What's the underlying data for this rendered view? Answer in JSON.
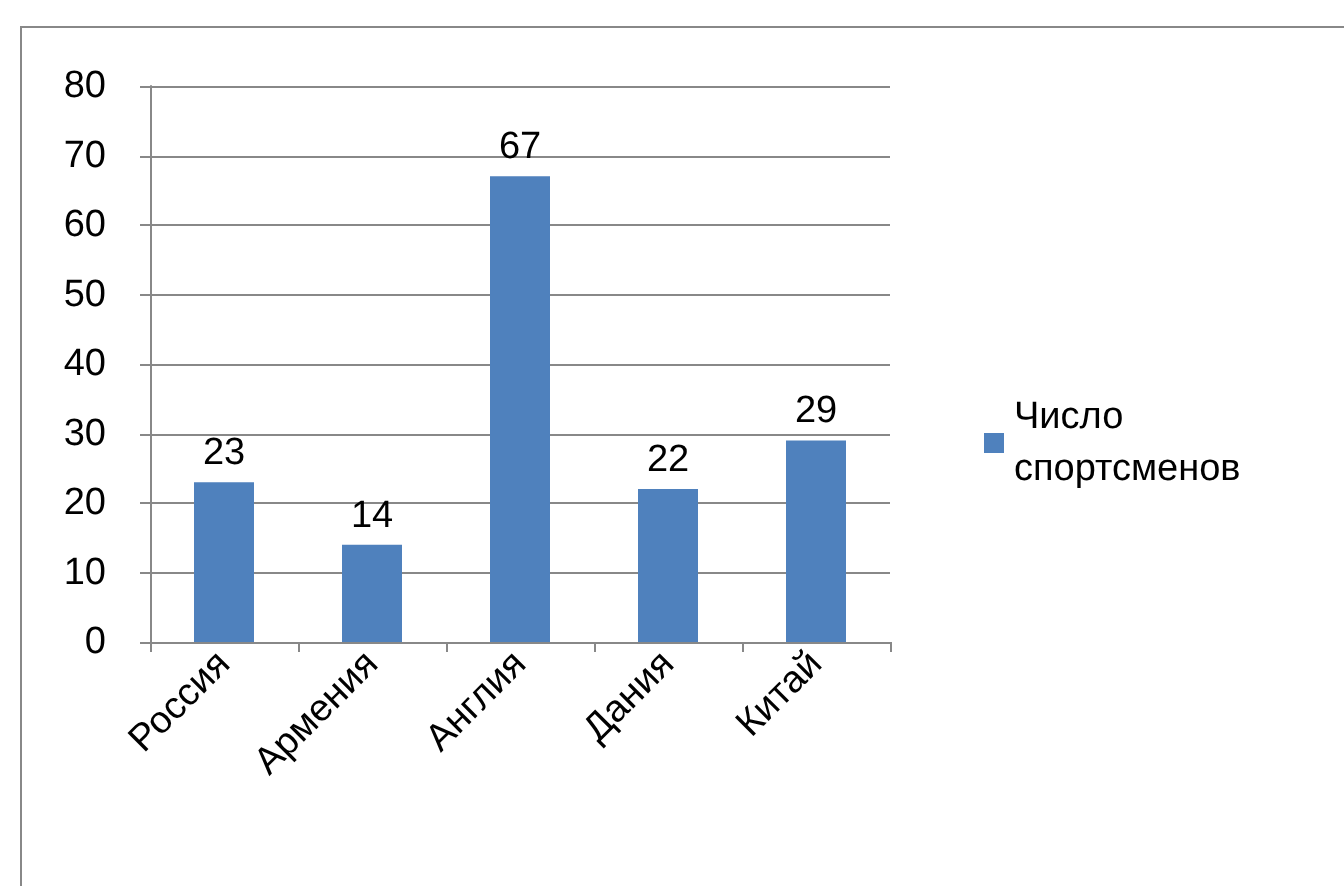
{
  "chart_data": {
    "type": "bar",
    "categories": [
      "Россия",
      "Армения",
      "Англия",
      "Дания",
      "Китай"
    ],
    "series": [
      {
        "name": "Число спортсменов",
        "color": "#4f81bd",
        "values": [
          23,
          14,
          67,
          22,
          29
        ]
      }
    ],
    "ylim": [
      0,
      80
    ],
    "yticks": [
      0,
      10,
      20,
      30,
      40,
      50,
      60,
      70,
      80
    ],
    "grid": "y",
    "legend": "right",
    "data_labels": true
  }
}
